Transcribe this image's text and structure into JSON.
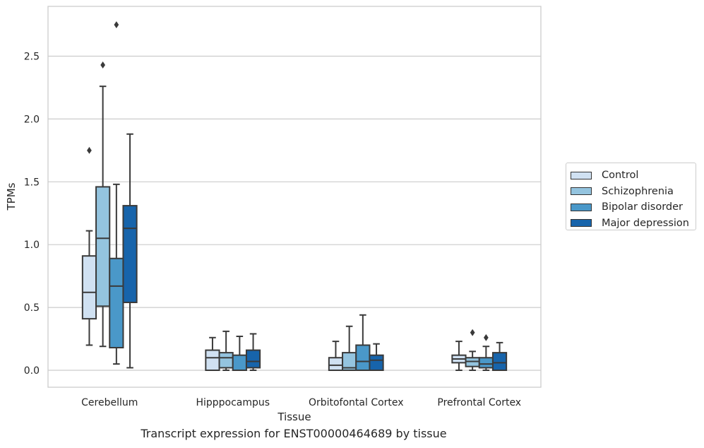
{
  "chart_data": {
    "type": "boxplot",
    "caption": "Transcript expression for ENST00000464689 by tissue",
    "xlabel": "Tissue",
    "ylabel": "TPMs",
    "ylim": [
      -0.13,
      2.9
    ],
    "yticks": [
      0.0,
      0.5,
      1.0,
      1.5,
      2.0,
      2.5
    ],
    "ytick_labels": [
      "0.0",
      "0.5",
      "1.0",
      "1.5",
      "2.0",
      "2.5"
    ],
    "grid": "horizontal",
    "legend_position": "right",
    "categories": [
      "Cerebellum",
      "Hipppocampus",
      "Orbitofontal Cortex",
      "Prefrontal Cortex"
    ],
    "series": [
      {
        "name": "Control",
        "color": "#d0e1f2",
        "boxes": [
          {
            "whisker_low": 0.2,
            "q1": 0.41,
            "median": 0.62,
            "q3": 0.91,
            "whisker_high": 1.11,
            "outliers": [
              1.75
            ]
          },
          {
            "whisker_low": 0.0,
            "q1": 0.0,
            "median": 0.1,
            "q3": 0.16,
            "whisker_high": 0.26,
            "outliers": []
          },
          {
            "whisker_low": 0.0,
            "q1": 0.0,
            "median": 0.04,
            "q3": 0.1,
            "whisker_high": 0.23,
            "outliers": []
          },
          {
            "whisker_low": 0.0,
            "q1": 0.06,
            "median": 0.09,
            "q3": 0.12,
            "whisker_high": 0.23,
            "outliers": []
          }
        ]
      },
      {
        "name": "Schizophrenia",
        "color": "#94c4df",
        "boxes": [
          {
            "whisker_low": 0.19,
            "q1": 0.51,
            "median": 1.05,
            "q3": 1.46,
            "whisker_high": 2.26,
            "outliers": [
              2.43
            ]
          },
          {
            "whisker_low": 0.0,
            "q1": 0.02,
            "median": 0.1,
            "q3": 0.14,
            "whisker_high": 0.31,
            "outliers": []
          },
          {
            "whisker_low": 0.0,
            "q1": 0.0,
            "median": 0.02,
            "q3": 0.14,
            "whisker_high": 0.35,
            "outliers": []
          },
          {
            "whisker_low": 0.0,
            "q1": 0.03,
            "median": 0.07,
            "q3": 0.1,
            "whisker_high": 0.15,
            "outliers": [
              0.3
            ]
          }
        ]
      },
      {
        "name": "Bipolar disorder",
        "color": "#4a98c9",
        "boxes": [
          {
            "whisker_low": 0.05,
            "q1": 0.18,
            "median": 0.67,
            "q3": 0.89,
            "whisker_high": 1.48,
            "outliers": [
              2.75
            ]
          },
          {
            "whisker_low": 0.0,
            "q1": 0.0,
            "median": 0.0,
            "q3": 0.12,
            "whisker_high": 0.27,
            "outliers": []
          },
          {
            "whisker_low": 0.0,
            "q1": 0.0,
            "median": 0.07,
            "q3": 0.2,
            "whisker_high": 0.44,
            "outliers": []
          },
          {
            "whisker_low": 0.0,
            "q1": 0.02,
            "median": 0.05,
            "q3": 0.1,
            "whisker_high": 0.19,
            "outliers": [
              0.26
            ]
          }
        ]
      },
      {
        "name": "Major depression",
        "color": "#1764ab",
        "boxes": [
          {
            "whisker_low": 0.02,
            "q1": 0.54,
            "median": 1.13,
            "q3": 1.31,
            "whisker_high": 1.88,
            "outliers": []
          },
          {
            "whisker_low": 0.0,
            "q1": 0.02,
            "median": 0.07,
            "q3": 0.16,
            "whisker_high": 0.29,
            "outliers": []
          },
          {
            "whisker_low": 0.0,
            "q1": 0.0,
            "median": 0.08,
            "q3": 0.12,
            "whisker_high": 0.21,
            "outliers": []
          },
          {
            "whisker_low": 0.0,
            "q1": 0.0,
            "median": 0.06,
            "q3": 0.14,
            "whisker_high": 0.22,
            "outliers": []
          }
        ]
      }
    ]
  }
}
